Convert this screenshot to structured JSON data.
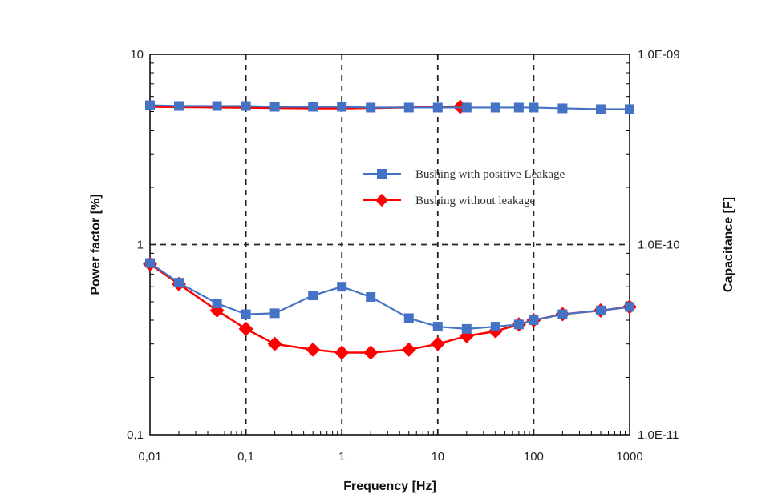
{
  "colors": {
    "series_blue": "#4472C4",
    "series_red": "#FF0000",
    "grid": "#222222",
    "frame": "#000000"
  },
  "chart_data": {
    "type": "line",
    "title": "",
    "xlabel": "Frequency [Hz]",
    "ylabel": "Power factor [%]",
    "y2label": "Capacitance [F]",
    "xscale": "log",
    "yscale": "log",
    "y2scale": "log",
    "xlim": [
      0.01,
      1000
    ],
    "ylim": [
      0.1,
      10
    ],
    "y2lim": [
      1e-11,
      1e-09
    ],
    "x_ticks": [
      0.01,
      0.1,
      1,
      10,
      100,
      1000
    ],
    "x_tick_labels": [
      "0,01",
      "0,1",
      "1",
      "10",
      "100",
      "1000"
    ],
    "y_ticks": [
      0.1,
      1,
      10
    ],
    "y_tick_labels": [
      "0,1",
      "1",
      "10"
    ],
    "y2_ticks": [
      1e-11,
      1e-10,
      1e-09
    ],
    "y2_tick_labels": [
      "1,0E-11",
      "1,0E-10",
      "1,0E-09"
    ],
    "grid": "dashed, at decades",
    "legend_position": "right-center",
    "series": [
      {
        "name": "Bushing with positive Leakage",
        "axis": "left",
        "color": "#4472C4",
        "marker": "square",
        "x": [
          0.01,
          0.02,
          0.05,
          0.1,
          0.2,
          0.5,
          1,
          2,
          5,
          10,
          20,
          40,
          70,
          100,
          200,
          500,
          1000
        ],
        "values": [
          0.8,
          0.63,
          0.49,
          0.43,
          0.435,
          0.54,
          0.6,
          0.53,
          0.41,
          0.37,
          0.36,
          0.37,
          0.38,
          0.4,
          0.43,
          0.45,
          0.47
        ]
      },
      {
        "name": "Bushing without leakage",
        "axis": "left",
        "color": "#FF0000",
        "marker": "diamond",
        "x": [
          0.01,
          0.02,
          0.05,
          0.1,
          0.2,
          0.5,
          1,
          2,
          5,
          10,
          20,
          40,
          70,
          100,
          200,
          500,
          1000
        ],
        "values": [
          0.79,
          0.62,
          0.45,
          0.36,
          0.3,
          0.28,
          0.27,
          0.27,
          0.28,
          0.3,
          0.33,
          0.35,
          0.38,
          0.4,
          0.43,
          0.45,
          0.47
        ]
      },
      {
        "name": "",
        "axis": "right",
        "color": "#4472C4",
        "marker": "square",
        "x": [
          0.01,
          0.02,
          0.05,
          0.1,
          0.2,
          0.5,
          1,
          2,
          5,
          10,
          20,
          40,
          70,
          100,
          200,
          500,
          1000
        ],
        "values": [
          5.4e-10,
          5.35e-10,
          5.35e-10,
          5.35e-10,
          5.3e-10,
          5.3e-10,
          5.3e-10,
          5.25e-10,
          5.25e-10,
          5.25e-10,
          5.25e-10,
          5.25e-10,
          5.25e-10,
          5.25e-10,
          5.2e-10,
          5.15e-10,
          5.15e-10
        ]
      },
      {
        "name": "",
        "axis": "right",
        "color": "#FF0000",
        "marker": "diamond",
        "x": [
          0.01,
          0.5,
          1,
          20
        ],
        "values": [
          5.3e-10,
          5.2e-10,
          5.2e-10,
          5.3e-10
        ]
      }
    ]
  }
}
